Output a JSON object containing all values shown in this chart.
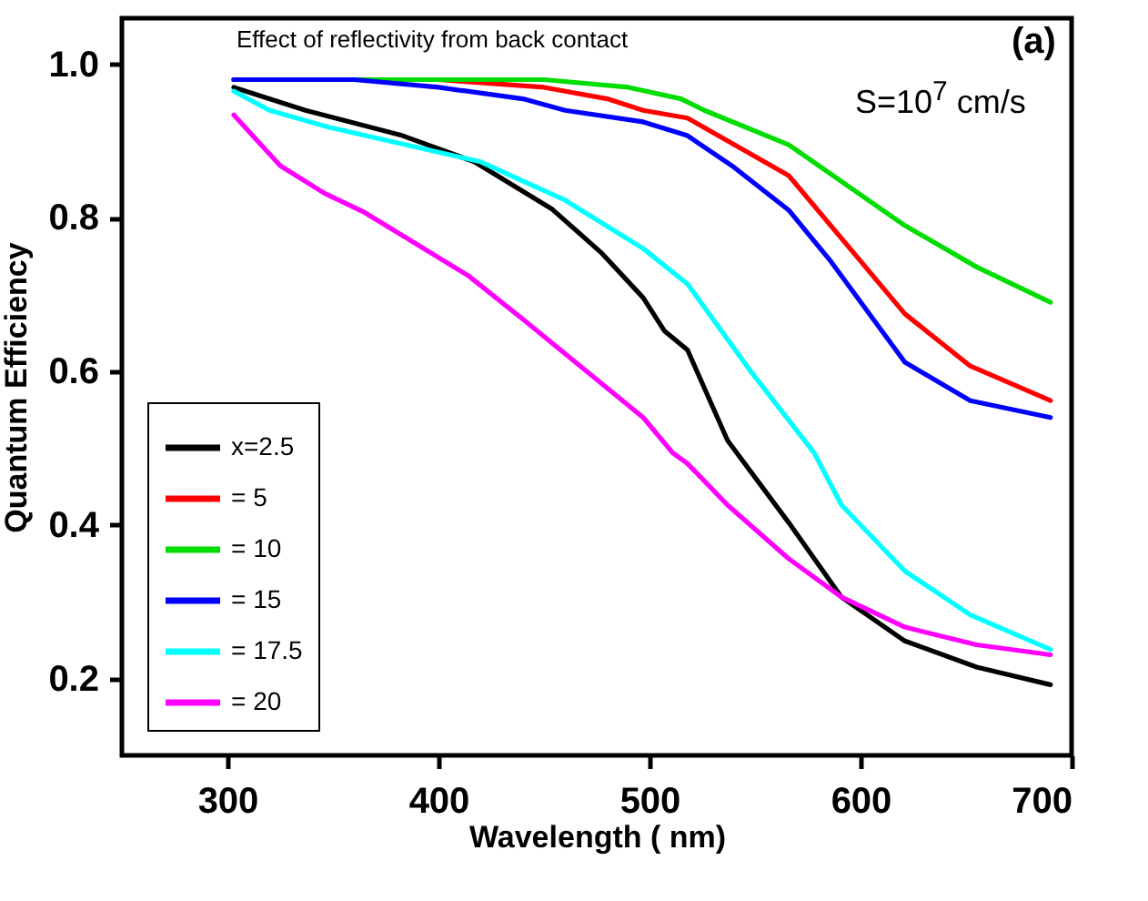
{
  "chart_data": {
    "type": "line",
    "xlabel": "Wavelength ( nm)",
    "ylabel": "Quantum Efficiency",
    "annotations": [
      "Effect of reflectivity from back contact",
      "(a)",
      "S=10$^{7}$ cm/s"
    ],
    "xlim": [
      250,
      700
    ],
    "xticks": [
      300,
      400,
      500,
      600,
      700
    ],
    "ylim": [
      0.1,
      1.06
    ],
    "yticks": [
      {
        "value": 0.2,
        "label": "0.2"
      },
      {
        "value": 0.4,
        "label": "0.4"
      },
      {
        "value": 0.6,
        "label": "0.6"
      },
      {
        "value": 0.8,
        "label": "0.8"
      },
      {
        "value": 1.0,
        "label": "1.0"
      }
    ],
    "grid": false,
    "legend": "bottom left",
    "marker": "none",
    "line_style": "solid",
    "series": [
      {
        "name": "x=2.5",
        "color": "#000000",
        "x": [
          303,
          337,
          383,
          417,
          454,
          477,
          497,
          507,
          518,
          537,
          566,
          591,
          621,
          655,
          690
        ],
        "values": [
          0.97,
          0.94,
          0.907,
          0.873,
          0.811,
          0.755,
          0.696,
          0.653,
          0.628,
          0.51,
          0.403,
          0.306,
          0.249,
          0.215,
          0.192
        ]
      },
      {
        "name": "= 5",
        "color": "#ff0000",
        "x": [
          303,
          400,
          450,
          480,
          497,
          518,
          566,
          621,
          652,
          690
        ],
        "values": [
          0.98,
          0.98,
          0.97,
          0.955,
          0.94,
          0.93,
          0.855,
          0.675,
          0.607,
          0.562
        ]
      },
      {
        "name": "= 10",
        "color": "#00dd00",
        "x": [
          303,
          450,
          490,
          515,
          526,
          566,
          621,
          655,
          690
        ],
        "values": [
          0.98,
          0.98,
          0.97,
          0.955,
          0.94,
          0.895,
          0.79,
          0.736,
          0.69
        ]
      },
      {
        "name": "= 15",
        "color": "#0000ff",
        "x": [
          303,
          360,
          400,
          440,
          460,
          497,
          518,
          540,
          566,
          586,
          621,
          652,
          690
        ],
        "values": [
          0.98,
          0.98,
          0.97,
          0.955,
          0.94,
          0.925,
          0.907,
          0.866,
          0.81,
          0.743,
          0.612,
          0.562,
          0.54
        ]
      },
      {
        "name": "= 17.5",
        "color": "#00ffff",
        "x": [
          303,
          320,
          348,
          420,
          460,
          497,
          518,
          548,
          578,
          591,
          621,
          652,
          690
        ],
        "values": [
          0.965,
          0.94,
          0.918,
          0.873,
          0.823,
          0.76,
          0.714,
          0.6,
          0.494,
          0.426,
          0.34,
          0.283,
          0.238
        ]
      },
      {
        "name": "= 20",
        "color": "#ff00ff",
        "x": [
          303,
          325,
          346,
          365,
          414,
          440,
          497,
          511,
          518,
          537,
          566,
          591,
          621,
          655,
          690
        ],
        "values": [
          0.934,
          0.868,
          0.832,
          0.807,
          0.725,
          0.668,
          0.54,
          0.494,
          0.48,
          0.426,
          0.356,
          0.306,
          0.267,
          0.244,
          0.231
        ]
      }
    ]
  }
}
